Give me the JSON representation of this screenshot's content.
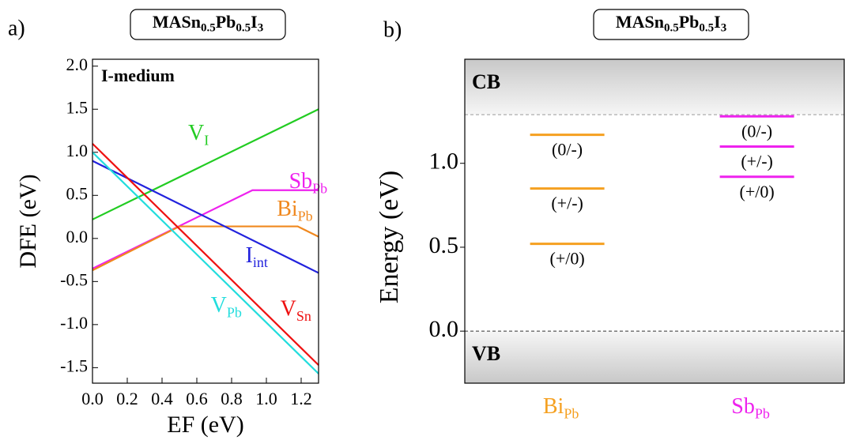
{
  "chart_data": [
    {
      "type": "line",
      "panel": "a)",
      "title": [
        "MASn",
        "0.5",
        "Pb",
        "0.5",
        "I",
        "3"
      ],
      "annotation": "I-medium",
      "xlabel": "EF (eV)",
      "ylabel": "DFE (eV)",
      "xlim": [
        0,
        1.3
      ],
      "ylim": [
        -1.68,
        2.08
      ],
      "xticks": [
        {
          "value": 0,
          "label": "0.0"
        },
        {
          "value": 0.2,
          "label": "0.2"
        },
        {
          "value": 0.4,
          "label": "0.4"
        },
        {
          "value": 0.6,
          "label": "0.6"
        },
        {
          "value": 0.8,
          "label": "0.8"
        },
        {
          "value": 1.0,
          "label": "1.0"
        },
        {
          "value": 1.2,
          "label": "1.2"
        }
      ],
      "yticks": [
        {
          "value": -1.5,
          "label": "-1.5"
        },
        {
          "value": -1.0,
          "label": "-1.0"
        },
        {
          "value": -0.5,
          "label": "-0.5"
        },
        {
          "value": 0,
          "label": "0.0"
        },
        {
          "value": 0.5,
          "label": "0.5"
        },
        {
          "value": 1.0,
          "label": "1.0"
        },
        {
          "value": 1.5,
          "label": "1.5"
        },
        {
          "value": 2.0,
          "label": "2.0"
        }
      ],
      "series": [
        {
          "name": [
            "V",
            "I"
          ],
          "color": "#22cc22",
          "x": [
            0,
            1.3
          ],
          "y": [
            0.22,
            1.5
          ]
        },
        {
          "name": [
            "Sb",
            "Pb"
          ],
          "color": "#ee22ee",
          "x": [
            0,
            0.92,
            1.3
          ],
          "y": [
            -0.35,
            0.56,
            0.56
          ]
        },
        {
          "name": [
            "Bi",
            "Pb"
          ],
          "color": "#f0881e",
          "x": [
            0,
            0.5,
            1.18,
            1.3
          ],
          "y": [
            -0.37,
            0.14,
            0.14,
            0.02
          ]
        },
        {
          "name": [
            "I",
            "int"
          ],
          "color": "#2222dd",
          "x": [
            0,
            1.3
          ],
          "y": [
            0.9,
            -0.4
          ]
        },
        {
          "name": [
            "V",
            "Pb"
          ],
          "color": "#22dddd",
          "x": [
            0,
            1.3
          ],
          "y": [
            1.0,
            -1.57
          ]
        },
        {
          "name": [
            "V",
            "Sn"
          ],
          "color": "#ee1111",
          "x": [
            0,
            1.3
          ],
          "y": [
            1.1,
            -1.47
          ]
        }
      ]
    },
    {
      "type": "levels",
      "panel": "b)",
      "title": [
        "MASn",
        "0.5",
        "Pb",
        "0.5",
        "I",
        "3"
      ],
      "ylabel": "Energy (eV)",
      "ylim": [
        -0.31,
        1.62
      ],
      "yticks": [
        {
          "value": 0,
          "label": "0.0"
        },
        {
          "value": 0.5,
          "label": "0.5"
        },
        {
          "value": 1.0,
          "label": "1.0"
        }
      ],
      "cb": 1.29,
      "vb": 0,
      "cb_label": "CB",
      "vb_label": "VB",
      "series": [
        {
          "name": [
            "Bi",
            "Pb"
          ],
          "color": "#f5a020",
          "values": [
            1.17,
            0.85,
            0.52
          ],
          "level_labels": [
            "(0/-)",
            "(+/-)",
            "(+/0)"
          ]
        },
        {
          "name": [
            "Sb",
            "Pb"
          ],
          "color": "#ee22ee",
          "values": [
            1.28,
            1.1,
            0.92
          ],
          "level_labels": [
            "(0/-)",
            "(+/-)",
            "(+/0)"
          ]
        }
      ]
    }
  ]
}
